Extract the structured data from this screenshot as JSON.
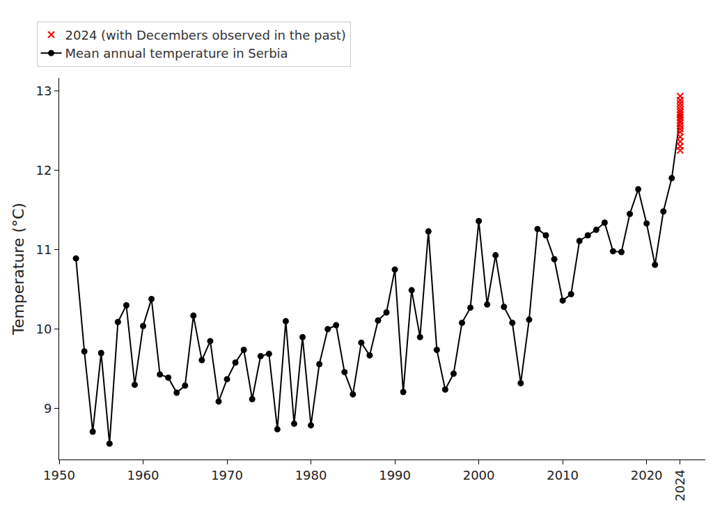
{
  "chart_data": {
    "type": "line",
    "y_label": "Temperature (°C)",
    "xlim": [
      1950,
      2027
    ],
    "xticks": [
      1950,
      1960,
      1970,
      1980,
      1990,
      2000,
      2010,
      2020,
      2024
    ],
    "ylim": [
      8.36,
      13.16
    ],
    "yticks": [
      9,
      10,
      11,
      12,
      13
    ],
    "grid": false,
    "legend": "upper left",
    "series": [
      {
        "name": "2024 (with Decembers observed in the past)",
        "type": "scatter",
        "color": "red",
        "marker": "x",
        "x": [
          2024,
          2024,
          2024,
          2024,
          2024,
          2024,
          2024,
          2024,
          2024,
          2024,
          2024,
          2024,
          2024,
          2024,
          2024,
          2024,
          2024
        ],
        "values": [
          12.25,
          12.3,
          12.36,
          12.42,
          12.48,
          12.52,
          12.56,
          12.6,
          12.63,
          12.66,
          12.7,
          12.73,
          12.76,
          12.8,
          12.84,
          12.88,
          12.93
        ]
      },
      {
        "name": "Mean annual temperature in Serbia",
        "type": "line",
        "color": "black",
        "marker": "circle",
        "line_style": "solid",
        "x": [
          1952,
          1953,
          1954,
          1955,
          1956,
          1957,
          1958,
          1959,
          1960,
          1961,
          1962,
          1963,
          1964,
          1965,
          1966,
          1967,
          1968,
          1969,
          1970,
          1971,
          1972,
          1973,
          1974,
          1975,
          1976,
          1977,
          1978,
          1979,
          1980,
          1981,
          1982,
          1983,
          1984,
          1985,
          1986,
          1987,
          1988,
          1989,
          1990,
          1991,
          1992,
          1993,
          1994,
          1995,
          1996,
          1997,
          1998,
          1999,
          2000,
          2001,
          2002,
          2003,
          2004,
          2005,
          2006,
          2007,
          2008,
          2009,
          2010,
          2011,
          2012,
          2013,
          2014,
          2015,
          2016,
          2017,
          2018,
          2019,
          2020,
          2021,
          2022,
          2023,
          2024
        ],
        "values": [
          10.89,
          9.72,
          8.71,
          9.7,
          8.56,
          10.09,
          10.3,
          9.3,
          10.04,
          10.38,
          9.43,
          9.39,
          9.2,
          9.29,
          10.17,
          9.61,
          9.85,
          9.09,
          9.37,
          9.58,
          9.74,
          9.12,
          9.66,
          9.69,
          8.74,
          10.1,
          8.81,
          9.9,
          8.79,
          9.56,
          10.0,
          10.05,
          9.46,
          9.18,
          9.83,
          9.67,
          10.11,
          10.21,
          10.75,
          9.21,
          10.49,
          9.9,
          11.23,
          9.74,
          9.24,
          9.44,
          10.08,
          10.27,
          11.36,
          10.31,
          10.93,
          10.28,
          10.08,
          9.32,
          10.12,
          11.26,
          11.18,
          10.88,
          10.36,
          10.44,
          11.11,
          11.18,
          11.25,
          11.34,
          10.98,
          10.97,
          11.45,
          11.76,
          11.33,
          10.81,
          11.48,
          11.9,
          12.67
        ]
      }
    ]
  }
}
